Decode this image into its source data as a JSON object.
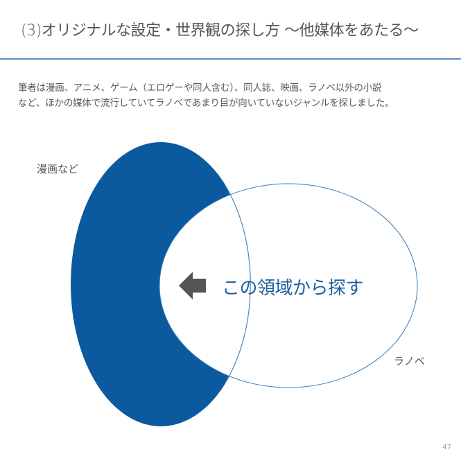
{
  "slide": {
    "title": "(3)オリジナルな設定・世界観の探し方 〜他媒体をあたる〜",
    "body_lines": [
      "筆者は漫画、アニメ、ゲーム（エロゲーや同人含む）、同人誌、映画、ラノベ以外の小説",
      "など、ほかの媒体で流行していてラノベであまり目が向いていないジャンルを探しました。"
    ],
    "page_number": "47"
  },
  "diagram": {
    "set_left_label": "漫画など",
    "set_right_label": "ラノベ",
    "callout": "この領域から探す",
    "colors": {
      "left_fill": "#0b5aa0",
      "right_stroke": "#3c7ab5",
      "arrow": "#555555",
      "callout_text": "#1f5fa0"
    },
    "icons": [
      "left-arrow-icon"
    ]
  }
}
